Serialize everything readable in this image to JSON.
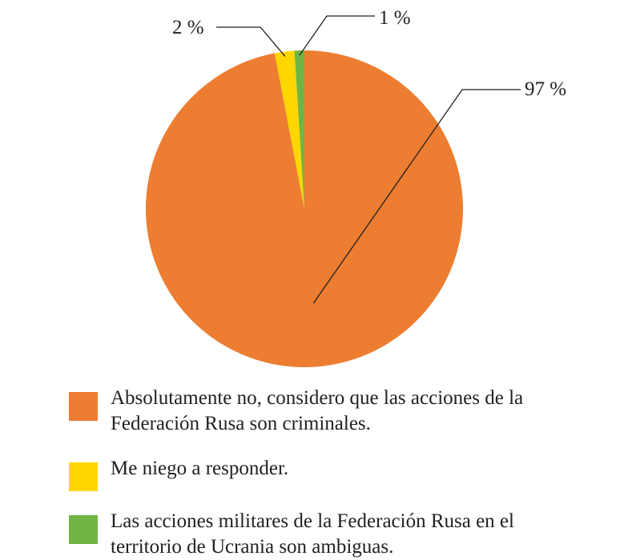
{
  "chart_data": {
    "type": "pie",
    "title": "",
    "legend_position": "bottom",
    "slices": [
      {
        "label": "Absolutamente no, considero que las acciones de la Federación Rusa son criminales.",
        "value": 97,
        "data_label": "97 %",
        "color": "#ed7d31"
      },
      {
        "label": "Me niego a responder.",
        "value": 2,
        "data_label": "2 %",
        "color": "#ffd600"
      },
      {
        "label": "Las acciones militares de la Federación Rusa en el territorio de Ucrania son ambiguas.",
        "value": 1,
        "data_label": "1 %",
        "color": "#70b444"
      }
    ]
  }
}
